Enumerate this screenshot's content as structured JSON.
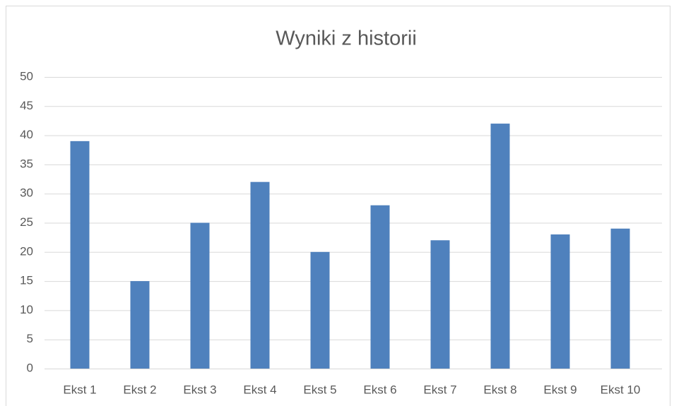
{
  "chart_data": {
    "type": "bar",
    "title": "Wyniki z historii",
    "categories": [
      "Ekst 1",
      "Ekst 2",
      "Ekst 3",
      "Ekst 4",
      "Ekst 5",
      "Ekst 6",
      "Ekst 7",
      "Ekst 8",
      "Ekst 9",
      "Ekst 10"
    ],
    "values": [
      39,
      15,
      25,
      32,
      20,
      28,
      22,
      42,
      23,
      24
    ],
    "color": "#4f81bd",
    "ylim": [
      0,
      50
    ],
    "yticks": [
      0,
      5,
      10,
      15,
      20,
      25,
      30,
      35,
      40,
      45,
      50
    ],
    "grid": true
  }
}
